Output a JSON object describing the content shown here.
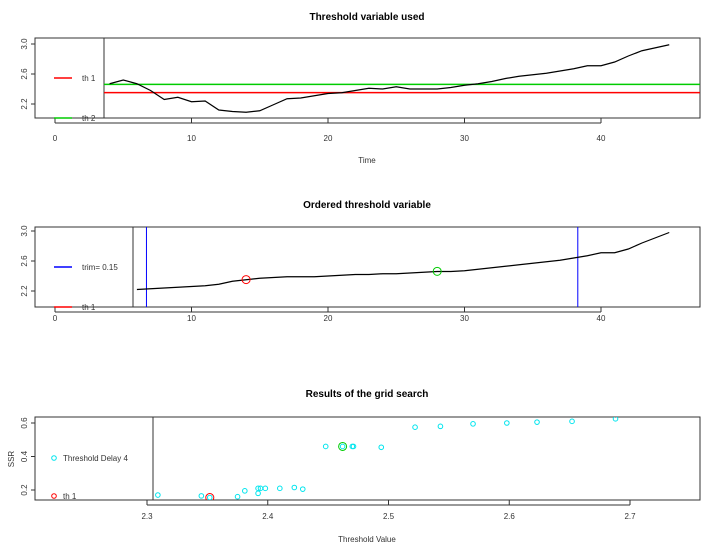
{
  "chart_data": [
    {
      "type": "line",
      "title": "Threshold variable used",
      "xlabel": "Time",
      "ylabel": "",
      "xlim": [
        -1,
        47
      ],
      "ylim": [
        2.1,
        3.04
      ],
      "xticks": [
        0,
        10,
        20,
        30,
        40
      ],
      "yticks": [
        2.2,
        2.6,
        3.0
      ],
      "ytick_labels": [
        "2.2",
        "2.6",
        "3.0"
      ],
      "series": [
        {
          "x": [
            4,
            5,
            6,
            7,
            8,
            9,
            10,
            11,
            12,
            13,
            14,
            15,
            16,
            17,
            18,
            19,
            20,
            21,
            22,
            23,
            24,
            25,
            26,
            27,
            28,
            29,
            30,
            31,
            32,
            33,
            34,
            35,
            36,
            37,
            38,
            39,
            40,
            41,
            42,
            43,
            44,
            45
          ],
          "y": [
            2.47,
            2.52,
            2.47,
            2.38,
            2.26,
            2.29,
            2.23,
            2.24,
            2.12,
            2.1,
            2.09,
            2.11,
            2.19,
            2.27,
            2.28,
            2.31,
            2.34,
            2.35,
            2.38,
            2.41,
            2.4,
            2.43,
            2.4,
            2.4,
            2.4,
            2.42,
            2.45,
            2.47,
            2.5,
            2.54,
            2.57,
            2.59,
            2.61,
            2.64,
            2.67,
            2.71,
            2.71,
            2.76,
            2.84,
            2.91,
            2.95,
            2.99
          ],
          "color": "#000000"
        }
      ],
      "hlines": [
        {
          "name": "th 1",
          "y": 2.352,
          "color": "#ff0000"
        },
        {
          "name": "th 2",
          "y": 2.462,
          "color": "#00cc00"
        }
      ],
      "legend": {
        "position": "left",
        "entries": [
          "th 1",
          "th 2"
        ]
      },
      "grid": false
    },
    {
      "type": "line",
      "title": "Ordered threshold variable",
      "xlabel": "",
      "ylabel": "",
      "xlim": [
        -1,
        47
      ],
      "ylim": [
        2.1,
        3.04
      ],
      "xticks": [
        0,
        10,
        20,
        30,
        40
      ],
      "yticks": [
        2.2,
        2.6,
        3.0
      ],
      "ytick_labels": [
        "2.2",
        "2.6",
        "3.0"
      ],
      "series": [
        {
          "x": [
            6,
            7,
            8,
            9,
            10,
            11,
            12,
            13,
            14,
            15,
            16,
            17,
            18,
            19,
            20,
            21,
            22,
            23,
            24,
            25,
            26,
            27,
            28,
            29,
            30,
            31,
            32,
            33,
            34,
            35,
            36,
            37,
            38,
            39,
            40,
            41,
            42,
            43,
            44,
            45
          ],
          "y": [
            2.22,
            2.23,
            2.24,
            2.25,
            2.26,
            2.27,
            2.29,
            2.33,
            2.35,
            2.37,
            2.38,
            2.39,
            2.39,
            2.39,
            2.4,
            2.41,
            2.42,
            2.42,
            2.43,
            2.43,
            2.44,
            2.45,
            2.46,
            2.46,
            2.47,
            2.49,
            2.51,
            2.53,
            2.55,
            2.57,
            2.59,
            2.61,
            2.64,
            2.67,
            2.71,
            2.71,
            2.76,
            2.84,
            2.91,
            2.98
          ],
          "color": "#000000"
        }
      ],
      "vlines": [
        {
          "name": "trim= 0.15",
          "x": 6.7,
          "color": "#0000ff"
        },
        {
          "x": 38.3,
          "color": "#0000ff"
        }
      ],
      "markers": [
        {
          "name": "th 1",
          "x": 14,
          "y": 2.352,
          "color": "#ff0000"
        },
        {
          "x": 28,
          "y": 2.462,
          "color": "#00cc00"
        }
      ],
      "legend": {
        "position": "left",
        "entries": [
          "trim= 0.15",
          "th 1"
        ]
      },
      "grid": false
    },
    {
      "type": "scatter",
      "title": "Results of the grid search",
      "xlabel": "Threshold Value",
      "ylabel": "SSR",
      "xlim": [
        2.22,
        2.755
      ],
      "ylim": [
        0.14,
        0.64
      ],
      "xticks": [
        2.3,
        2.4,
        2.5,
        2.6,
        2.7
      ],
      "xtick_labels": [
        "2.3",
        "2.4",
        "2.5",
        "2.6",
        "2.7"
      ],
      "yticks": [
        0.2,
        0.4,
        0.6
      ],
      "ytick_labels": [
        "0.2",
        "0.4",
        "0.6"
      ],
      "series": [
        {
          "name": "Threshold Delay 4",
          "color": "#00e5ee",
          "x": [
            2.309,
            2.345,
            2.352,
            2.375,
            2.381,
            2.392,
            2.392,
            2.394,
            2.398,
            2.41,
            2.422,
            2.429,
            2.448,
            2.462,
            2.47,
            2.471,
            2.494,
            2.522,
            2.543,
            2.57,
            2.598,
            2.623,
            2.652,
            2.688
          ],
          "y": [
            0.17,
            0.165,
            0.155,
            0.16,
            0.195,
            0.18,
            0.21,
            0.21,
            0.21,
            0.21,
            0.215,
            0.205,
            0.46,
            0.46,
            0.46,
            0.46,
            0.455,
            0.575,
            0.58,
            0.595,
            0.6,
            0.605,
            0.61,
            0.625
          ]
        }
      ],
      "markers": [
        {
          "name": "th 1",
          "x": 2.352,
          "y": 0.155,
          "color": "#ff0000"
        },
        {
          "x": 2.462,
          "y": 0.46,
          "color": "#00cc00"
        }
      ],
      "legend": {
        "position": "left",
        "entries": [
          "Threshold Delay 4",
          "th 1"
        ]
      },
      "grid": false
    }
  ]
}
